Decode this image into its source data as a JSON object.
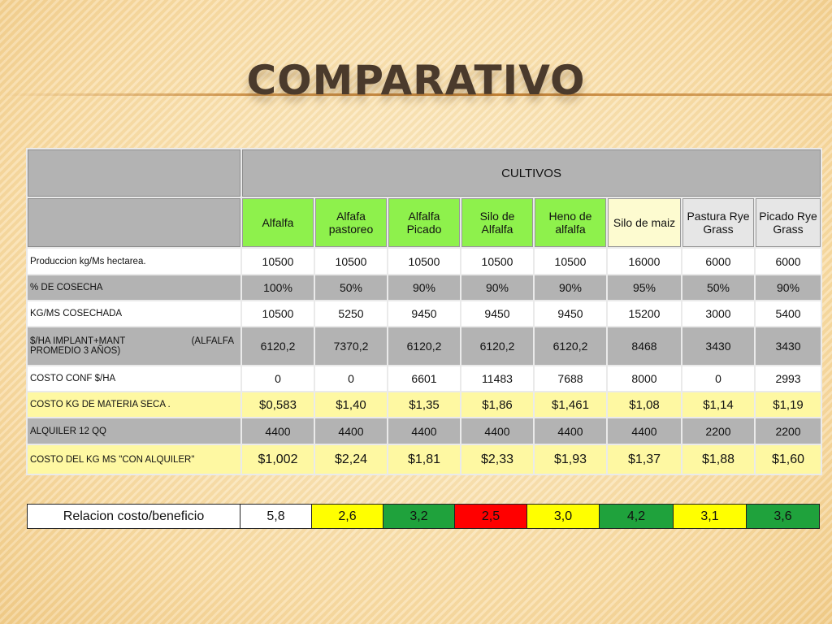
{
  "slide": {
    "title": "COMPARATIVO"
  },
  "table": {
    "group_header": "CULTIVOS",
    "columns": [
      {
        "label": "Alfalfa",
        "fill": "#8ef14c"
      },
      {
        "label": "Alfafa pastoreo",
        "fill": "#8ef14c"
      },
      {
        "label": "Alfalfa Picado",
        "fill": "#8ef14c"
      },
      {
        "label": "Silo de Alfalfa",
        "fill": "#8ef14c"
      },
      {
        "label": "Heno de alfalfa",
        "fill": "#8ef14c"
      },
      {
        "label": "Silo de maiz",
        "fill": "#fdfbd0"
      },
      {
        "label": "Pastura Rye Grass",
        "fill": "#e6e6e6"
      },
      {
        "label": "Picado Rye Grass",
        "fill": "#e6e6e6"
      }
    ],
    "rows": [
      {
        "label": "Produccion kg/Ms hectarea.",
        "fill": "#ffffff",
        "values": [
          "10500",
          "10500",
          "10500",
          "10500",
          "10500",
          "16000",
          "6000",
          "6000"
        ]
      },
      {
        "label": "% DE COSECHA",
        "fill": "#b3b3b3",
        "values": [
          "100%",
          "50%",
          "90%",
          "90%",
          "90%",
          "95%",
          "50%",
          "90%"
        ]
      },
      {
        "label": "KG/MS COSECHADA",
        "fill": "#ffffff",
        "values": [
          "10500",
          "5250",
          "9450",
          "9450",
          "9450",
          "15200",
          "3000",
          "5400"
        ]
      },
      {
        "label": "$/HA IMPLANT+MANT",
        "label_right": "(ALFALFA",
        "label_line2": "PROMEDIO 3 AÑOS)",
        "fill": "#b3b3b3",
        "values": [
          "6120,2",
          "7370,2",
          "6120,2",
          "6120,2",
          "6120,2",
          "8468",
          "3430",
          "3430"
        ]
      },
      {
        "label": "COSTO CONF $/HA",
        "fill": "#ffffff",
        "values": [
          "0",
          "0",
          "6601",
          "11483",
          "7688",
          "8000",
          "0",
          "2993"
        ]
      },
      {
        "label": "COSTO KG DE MATERIA SECA .",
        "fill": "#fef8a2",
        "values": [
          "$0,583",
          "$1,40",
          "$1,35",
          "$1,86",
          "$1,461",
          "$1,08",
          "$1,14",
          "$1,19"
        ]
      },
      {
        "label": "ALQUILER 12 QQ",
        "fill": "#b3b3b3",
        "values": [
          "4400",
          "4400",
          "4400",
          "4400",
          "4400",
          "4400",
          "2200",
          "2200"
        ]
      },
      {
        "label": "COSTO DEL KG MS \"CON ALQUILER\"",
        "fill": "#fef8a2",
        "values": [
          "$1,002",
          "$2,24",
          "$1,81",
          "$2,33",
          "$1,93",
          "$1,37",
          "$1,88",
          "$1,60"
        ]
      }
    ]
  },
  "ratio": {
    "label": "Relacion costo/beneficio",
    "cells": [
      {
        "value": "5,8",
        "fill": "#ffffff"
      },
      {
        "value": "2,6",
        "fill": "#ffff00"
      },
      {
        "value": "3,2",
        "fill": "#1fa23c"
      },
      {
        "value": "2,5",
        "fill": "#ff0000"
      },
      {
        "value": "3,0",
        "fill": "#ffff00"
      },
      {
        "value": "4,2",
        "fill": "#1fa23c"
      },
      {
        "value": "3,1",
        "fill": "#ffff00"
      },
      {
        "value": "3,6",
        "fill": "#1fa23c"
      }
    ]
  }
}
